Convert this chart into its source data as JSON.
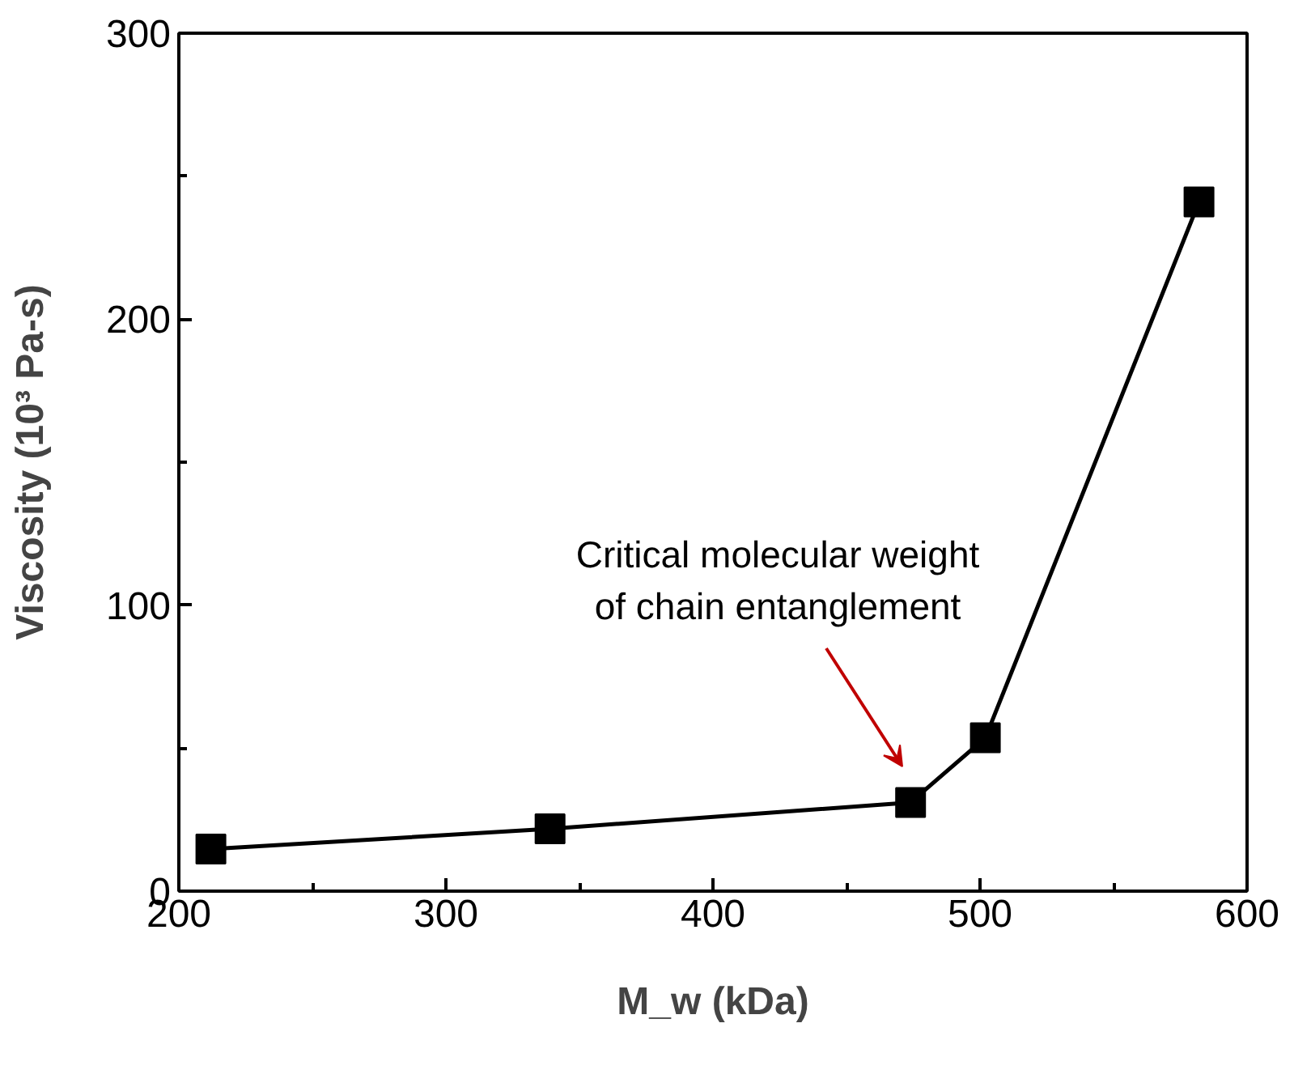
{
  "chart_data": {
    "type": "line",
    "xlabel": "M_w (kDa)",
    "ylabel": "Viscosity (10³ Pa-s)",
    "x": [
      212,
      339,
      474,
      502,
      582
    ],
    "series": [
      {
        "color": "#000000",
        "values": [
          14.7,
          21.8,
          31,
          53.6,
          241
        ]
      }
    ],
    "xlim": [
      200,
      600
    ],
    "xticks": [
      200,
      300,
      400,
      500,
      600
    ],
    "ylim": [
      0,
      300
    ],
    "yticks": [
      0,
      100,
      200,
      300
    ],
    "grid": false,
    "marker": "square",
    "line_style": "solid",
    "annotations": [
      "Critical molecular weight\nof chain entanglement"
    ]
  }
}
